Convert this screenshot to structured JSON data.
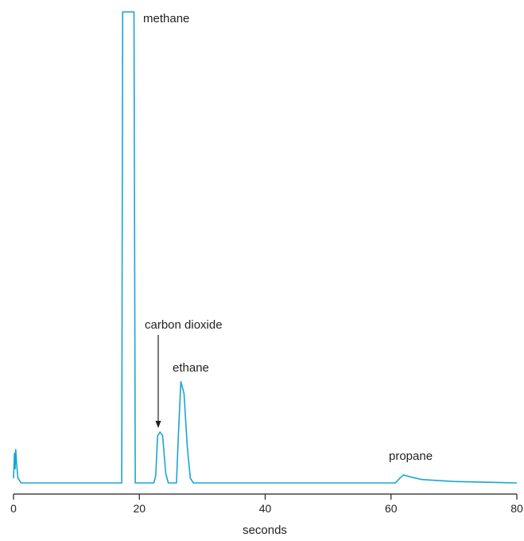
{
  "chart_data": {
    "type": "line",
    "title": "",
    "xlabel": "seconds",
    "ylabel": "",
    "xlim": [
      0,
      80
    ],
    "ylim": [
      0,
      100
    ],
    "grid": false,
    "legend": "none",
    "x_ticks": [
      0,
      20,
      40,
      60,
      80
    ],
    "line_color": "#1ba3d6",
    "series": [
      {
        "values_note": "",
        "points": [
          [
            0.0,
            1.0
          ],
          [
            0.15,
            6.3
          ],
          [
            0.25,
            3.0
          ],
          [
            0.35,
            7.1
          ],
          [
            0.5,
            4.0
          ],
          [
            0.7,
            1.0
          ],
          [
            1.2,
            0.0
          ],
          [
            17.2,
            0.0
          ],
          [
            17.35,
            100.0
          ],
          [
            19.15,
            100.0
          ],
          [
            19.35,
            0.0
          ],
          [
            22.3,
            0.0
          ],
          [
            22.6,
            1.5
          ],
          [
            22.9,
            10.0
          ],
          [
            23.3,
            10.8
          ],
          [
            23.7,
            10.0
          ],
          [
            24.2,
            2.0
          ],
          [
            24.6,
            0.0
          ],
          [
            25.9,
            0.0
          ],
          [
            26.2,
            10.0
          ],
          [
            26.6,
            21.5
          ],
          [
            27.1,
            19.0
          ],
          [
            27.6,
            8.0
          ],
          [
            28.1,
            1.0
          ],
          [
            28.6,
            0.0
          ],
          [
            60.7,
            0.0
          ],
          [
            61.4,
            1.0
          ],
          [
            62.0,
            1.7
          ],
          [
            63.0,
            1.3
          ],
          [
            65.0,
            0.7
          ],
          [
            70.0,
            0.3
          ],
          [
            80.0,
            0.0
          ]
        ]
      }
    ],
    "annotations": {
      "methane": "methane",
      "carbon_dioxide": "carbon dioxide",
      "ethane": "ethane",
      "propane": "propane"
    },
    "tick_labels": [
      "0",
      "20",
      "40",
      "60",
      "80"
    ]
  }
}
